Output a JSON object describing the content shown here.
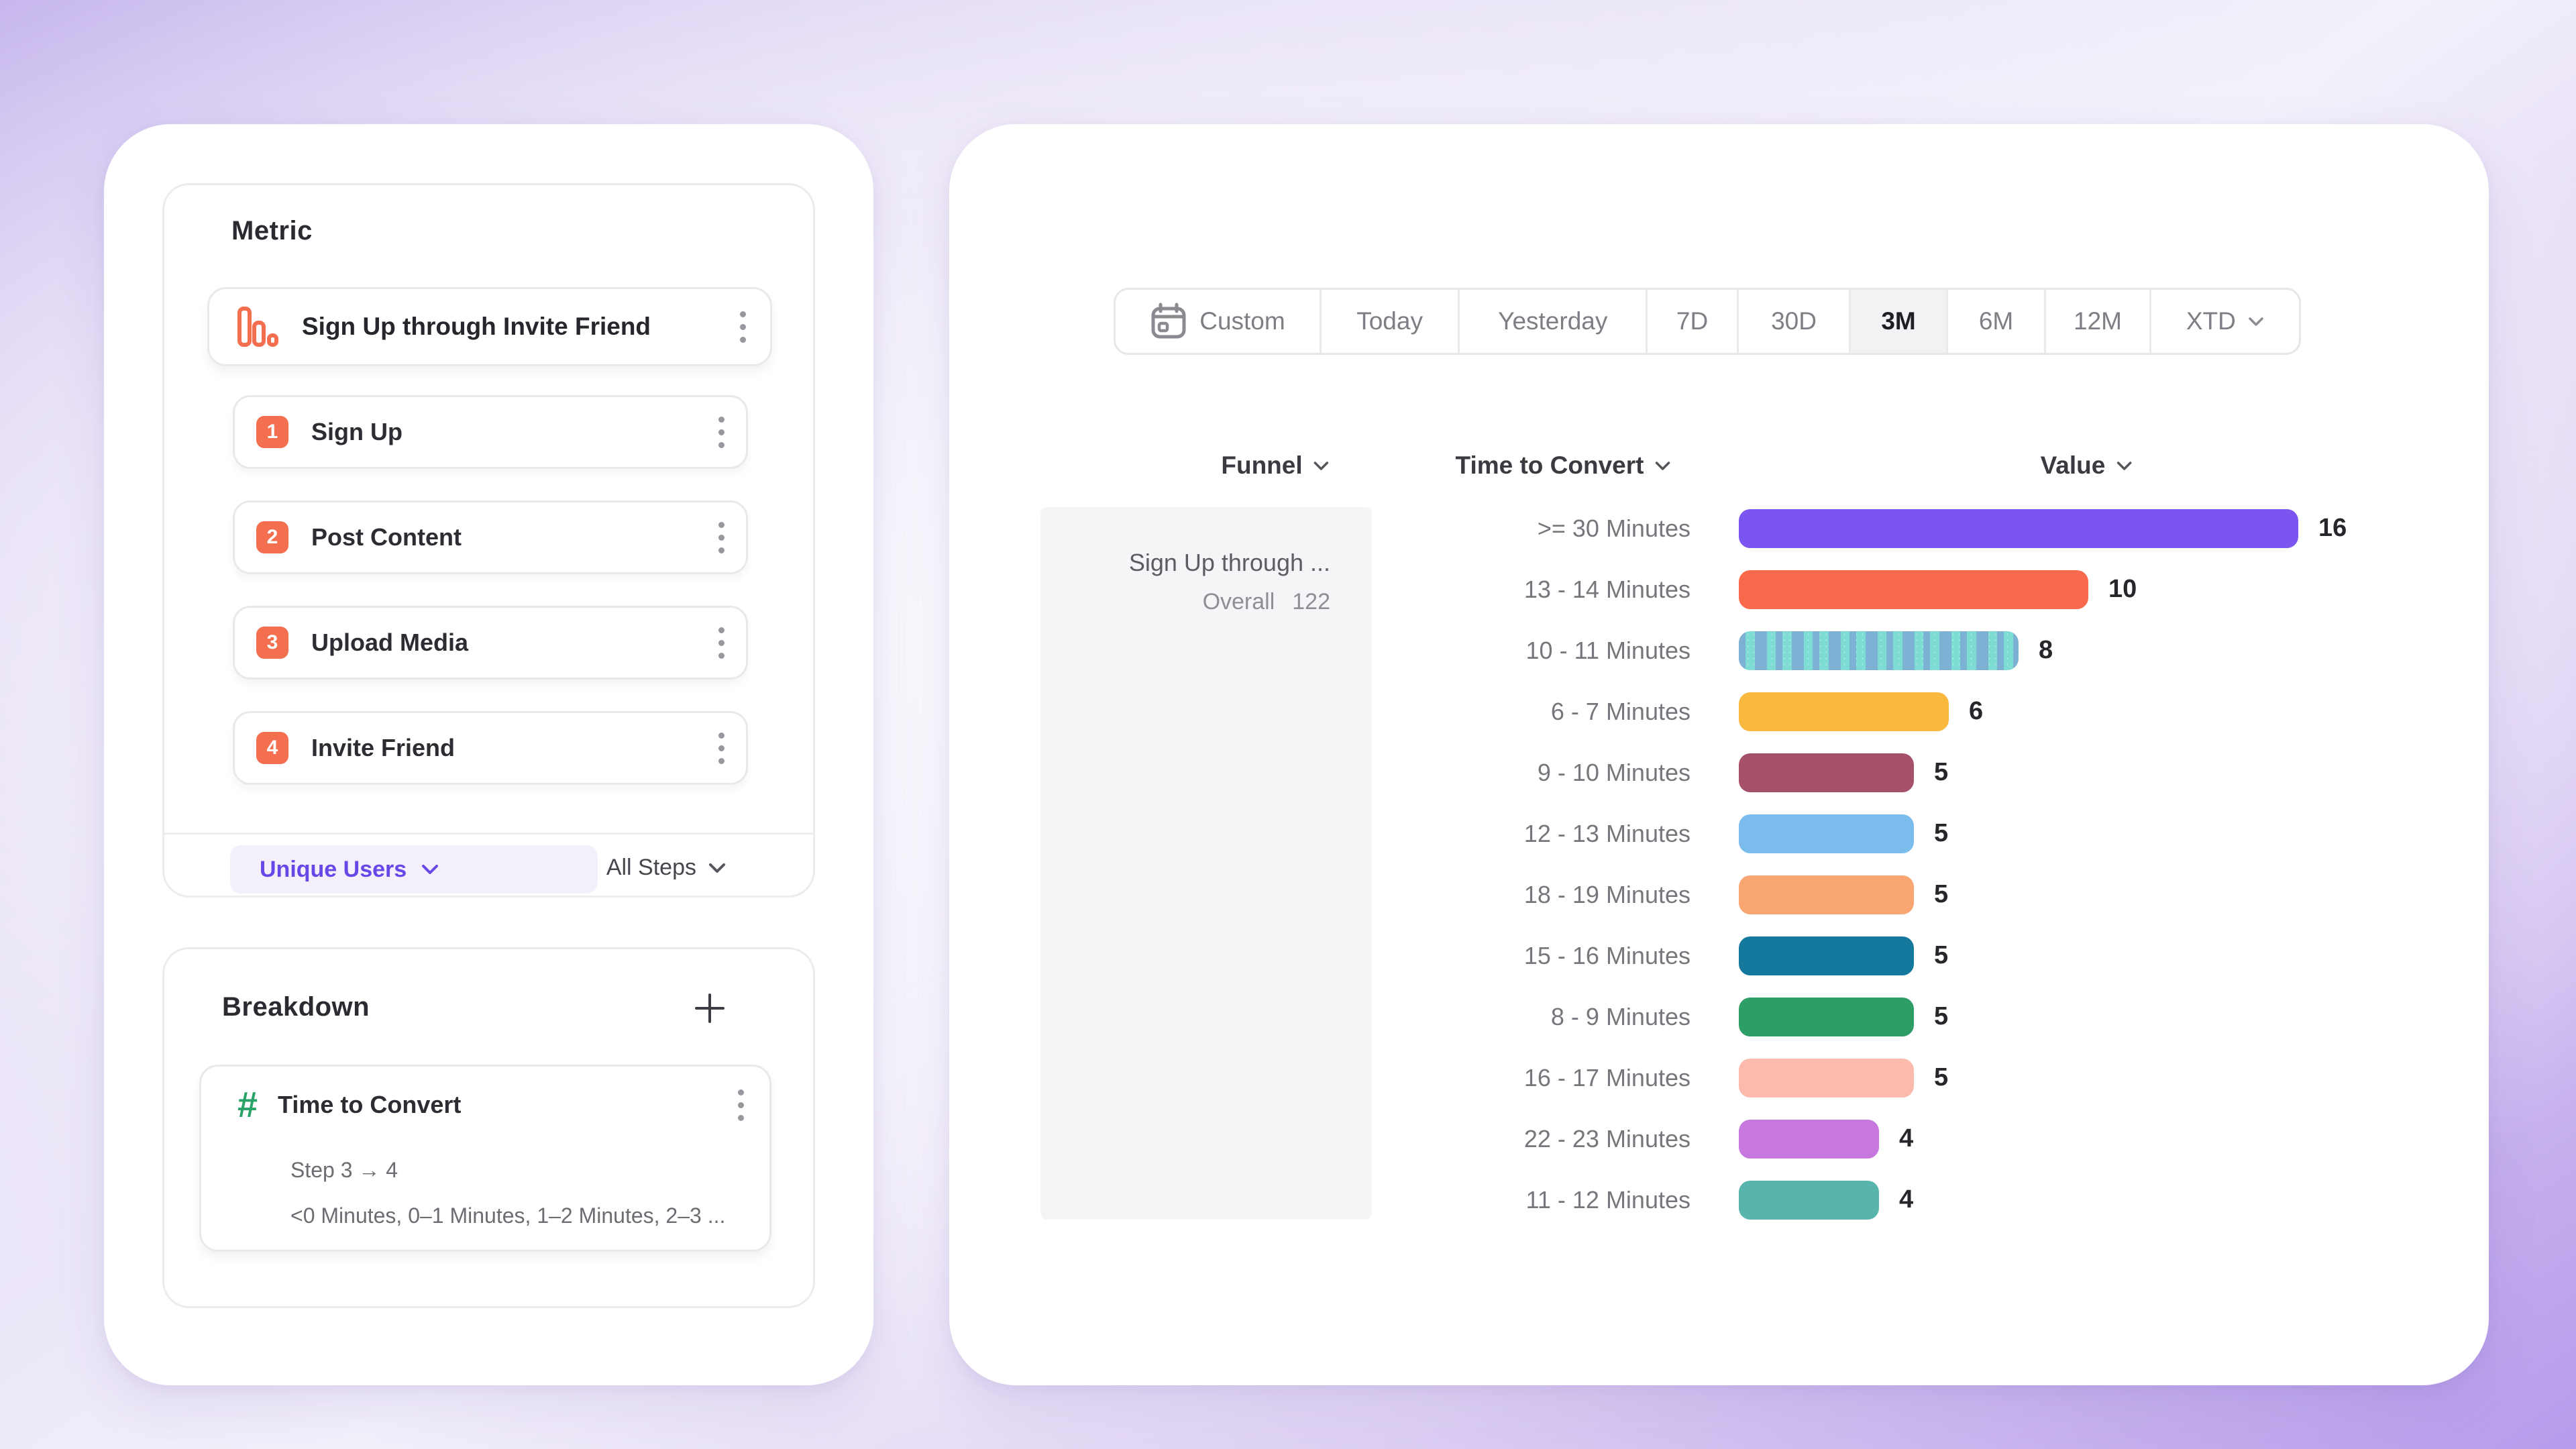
{
  "colors": {
    "accent_orange": "#F46F4F",
    "accent_purple": "#6847E8",
    "accent_green": "#2AA368",
    "pill_background": "#F3F0FB",
    "selected_segment_background": "#F2F2F4",
    "sidebar_background": "#F5F5F7",
    "background_lavender": "#C7B7ED"
  },
  "left_panel": {
    "metric_section": {
      "heading": "Metric",
      "metric_card": {
        "icon": "funnel-bars-icon",
        "title": "Sign Up through Invite Friend"
      },
      "steps": [
        {
          "num": "1",
          "label": "Sign Up"
        },
        {
          "num": "2",
          "label": "Post Content"
        },
        {
          "num": "3",
          "label": "Upload Media"
        },
        {
          "num": "4",
          "label": "Invite Friend"
        }
      ],
      "counting_dropdown": {
        "label": "Unique Users"
      },
      "steps_dropdown": {
        "label": "All Steps"
      }
    },
    "breakdown_section": {
      "heading": "Breakdown",
      "card": {
        "icon": "hash-icon",
        "title": "Time to Convert",
        "subtitle": "Step 3 → 4",
        "values_preview": "<0 Minutes, 0–1 Minutes, 1–2 Minutes, 2–3 ..."
      }
    }
  },
  "right_panel": {
    "date_bar": {
      "items": [
        "Custom",
        "Today",
        "Yesterday",
        "7D",
        "30D",
        "3M",
        "6M",
        "12M",
        "XTD"
      ],
      "selected_index": 5,
      "selected_label": "3M"
    },
    "columns": {
      "funnel": "Funnel",
      "time_to_convert": "Time to Convert",
      "value": "Value"
    },
    "funnel_summary": {
      "title": "Sign Up through ...",
      "overall_label": "Overall",
      "overall_value": "122"
    }
  },
  "chart_data": {
    "type": "bar",
    "orientation": "horizontal",
    "title": "Time to Convert distribution",
    "categories": [
      ">= 30 Minutes",
      "13 - 14 Minutes",
      "10 - 11 Minutes",
      "6 - 7 Minutes",
      "9 - 10 Minutes",
      "12 - 13 Minutes",
      "18 - 19 Minutes",
      "15 - 16 Minutes",
      "8 - 9 Minutes",
      "16 - 17 Minutes",
      "22 - 23 Minutes",
      "11 - 12 Minutes"
    ],
    "values": [
      16,
      10,
      8,
      6,
      5,
      5,
      5,
      5,
      5,
      5,
      4,
      4
    ],
    "colors": [
      "#7A55F0",
      "#F9694B",
      "#7DDCD3",
      "#F8B93E",
      "#A65069",
      "#7ABCEC",
      "#FAA672",
      "#15789D",
      "#2D9E66",
      "#FBBAAB",
      "#C678DE",
      "#58B5AD"
    ],
    "hatched_index": 2,
    "xlim": [
      0,
      16
    ],
    "grid": false,
    "legend": false
  }
}
